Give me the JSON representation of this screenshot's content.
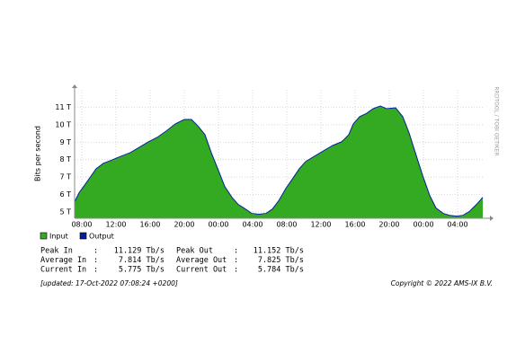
{
  "chart_data": {
    "type": "area",
    "y_label": "Bits per second",
    "side_note": "RRDTOOL / TOBI OETIKER",
    "xlim": [
      -0.84,
      47.05
    ],
    "ylim": [
      4.64,
      12
    ],
    "grid": true,
    "xticks": [
      {
        "value": 0,
        "label": "08:00"
      },
      {
        "value": 4,
        "label": "12:00"
      },
      {
        "value": 8,
        "label": "16:00"
      },
      {
        "value": 12,
        "label": "20:00"
      },
      {
        "value": 16,
        "label": "00:00"
      },
      {
        "value": 20,
        "label": "04:00"
      },
      {
        "value": 24,
        "label": "08:00"
      },
      {
        "value": 28,
        "label": "12:00"
      },
      {
        "value": 32,
        "label": "16:00"
      },
      {
        "value": 36,
        "label": "20:00"
      },
      {
        "value": 40,
        "label": "00:00"
      },
      {
        "value": 44,
        "label": "04:00"
      }
    ],
    "yticks": [
      {
        "value": 5,
        "label": "5 T"
      },
      {
        "value": 6,
        "label": "6 T"
      },
      {
        "value": 7,
        "label": "7 T"
      },
      {
        "value": 8,
        "label": "8 T"
      },
      {
        "value": 9,
        "label": "9 T"
      },
      {
        "value": 10,
        "label": "10 T"
      },
      {
        "value": 11,
        "label": "11 T"
      }
    ],
    "x": [
      -0.84,
      -0.32,
      0.42,
      0.95,
      1.68,
      2.53,
      3.58,
      4.63,
      5.68,
      6.74,
      7.79,
      8.84,
      9.89,
      10.95,
      12,
      12.84,
      13.58,
      14.42,
      15.16,
      16,
      16.74,
      17.58,
      18.32,
      19.16,
      19.89,
      20.74,
      21.58,
      22.32,
      23.05,
      23.89,
      24.63,
      25.47,
      26.21,
      27.26,
      28.32,
      29.37,
      30.42,
      31.26,
      31.79,
      32.53,
      33.37,
      34.11,
      34.95,
      35.68,
      36.74,
      37.58,
      38.32,
      39.05,
      39.89,
      40.74,
      41.47,
      42.32,
      43.05,
      43.89,
      44.63,
      45.37,
      46.21,
      46.95
    ],
    "series": [
      {
        "name": "Input",
        "color": "#33aa22",
        "values": [
          5.56,
          6.08,
          6.59,
          6.95,
          7.46,
          7.77,
          7.97,
          8.18,
          8.38,
          8.69,
          9.0,
          9.26,
          9.62,
          10.03,
          10.28,
          10.28,
          9.92,
          9.41,
          8.38,
          7.36,
          6.44,
          5.82,
          5.41,
          5.15,
          4.9,
          4.85,
          4.9,
          5.15,
          5.62,
          6.33,
          6.85,
          7.46,
          7.87,
          8.18,
          8.49,
          8.79,
          9.0,
          9.41,
          10.03,
          10.44,
          10.64,
          10.9,
          11.05,
          10.9,
          10.95,
          10.44,
          9.51,
          8.38,
          7.1,
          5.92,
          5.21,
          4.9,
          4.79,
          4.74,
          4.79,
          5.0,
          5.41,
          5.82
        ]
      },
      {
        "name": "Output",
        "color": "#001f99",
        "values": [
          5.58,
          6.1,
          6.6,
          6.97,
          7.48,
          7.79,
          7.99,
          8.2,
          8.4,
          8.71,
          9.02,
          9.28,
          9.64,
          10.05,
          10.3,
          10.3,
          9.94,
          9.43,
          8.4,
          7.38,
          6.46,
          5.84,
          5.43,
          5.17,
          4.92,
          4.87,
          4.92,
          5.17,
          5.64,
          6.35,
          6.87,
          7.48,
          7.89,
          8.2,
          8.51,
          8.81,
          9.02,
          9.43,
          10.05,
          10.46,
          10.66,
          10.92,
          11.07,
          10.92,
          10.97,
          10.46,
          9.53,
          8.4,
          7.12,
          5.94,
          5.23,
          4.92,
          4.81,
          4.76,
          4.81,
          5.02,
          5.43,
          5.84
        ]
      }
    ]
  },
  "stats": [
    [
      {
        "label": "Peak In",
        "sep": ":",
        "value": "11.129 Tb/s"
      },
      {
        "label": "Peak Out",
        "sep": ":",
        "value": "11.152 Tb/s"
      }
    ],
    [
      {
        "label": "Average In",
        "sep": ":",
        "value": "7.814 Tb/s"
      },
      {
        "label": "Average Out",
        "sep": ":",
        "value": "7.825 Tb/s"
      }
    ],
    [
      {
        "label": "Current In",
        "sep": ":",
        "value": "5.775 Tb/s"
      },
      {
        "label": "Current Out",
        "sep": ":",
        "value": "5.784 Tb/s"
      }
    ]
  ],
  "footer": {
    "updated": "[updated: 17-Oct-2022 07:08:24 +0200]",
    "copyright": "Copyright © 2022 AMS-IX B.V."
  }
}
